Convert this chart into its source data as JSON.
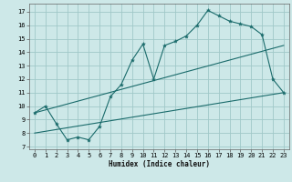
{
  "bg_color": "#cde8e8",
  "grid_color": "#a0c8c8",
  "line_color": "#1a6b6b",
  "xlabel": "Humidex (Indice chaleur)",
  "xlim": [
    -0.5,
    23.5
  ],
  "ylim": [
    6.8,
    17.6
  ],
  "xticks": [
    0,
    1,
    2,
    3,
    4,
    5,
    6,
    7,
    8,
    9,
    10,
    11,
    12,
    13,
    14,
    15,
    16,
    17,
    18,
    19,
    20,
    21,
    22,
    23
  ],
  "yticks": [
    7,
    8,
    9,
    10,
    11,
    12,
    13,
    14,
    15,
    16,
    17
  ],
  "curve1_x": [
    0,
    1,
    2,
    3,
    4,
    5,
    6,
    7,
    8,
    9,
    10,
    11,
    12,
    13,
    14,
    15,
    16,
    17,
    18,
    19,
    20,
    21,
    22,
    23
  ],
  "curve1_y": [
    9.5,
    10.0,
    8.7,
    7.5,
    7.7,
    7.5,
    8.5,
    10.7,
    11.6,
    13.4,
    14.6,
    12.0,
    14.5,
    14.8,
    15.2,
    16.0,
    17.1,
    16.7,
    16.3,
    16.1,
    15.9,
    15.3,
    12.0,
    11.0
  ],
  "curve2_x": [
    0,
    23
  ],
  "curve2_y": [
    9.5,
    14.5
  ],
  "curve3_x": [
    0,
    23
  ],
  "curve3_y": [
    8.0,
    11.0
  ],
  "xlabel_fontsize": 5.5,
  "tick_fontsize": 5
}
